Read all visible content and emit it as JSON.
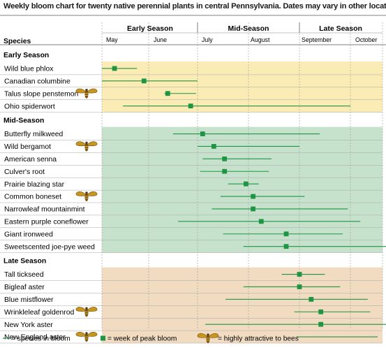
{
  "title": "Weekly bloom chart for twenty native perennial plants in central Pennsylvania. Dates may vary in other locations.",
  "colors": {
    "early_bg": "#faecb4",
    "mid_bg": "#c7e2cc",
    "late_bg": "#f1dcc2",
    "bloom_line": "#1f9443",
    "peak_marker": "#1f9443",
    "bee": "#c9961d"
  },
  "chart_data": {
    "type": "gantt",
    "species_header": "Species",
    "season_headers": [
      "Early Season",
      "Mid-Season",
      "Late Season"
    ],
    "months": [
      "May",
      "June",
      "July",
      "August",
      "September",
      "October"
    ],
    "x_unit": "months after May 1",
    "xlim": [
      0,
      6.1
    ],
    "groups": [
      {
        "name": "Early Season",
        "plants": [
          {
            "name": "Wild blue phlox",
            "bloom_start": 0.0,
            "bloom_end": 0.75,
            "peak": 0.27,
            "bee": false
          },
          {
            "name": "Canadian columbine",
            "bloom_start": 0.0,
            "bloom_end": 2.0,
            "peak": 0.9,
            "bee": false
          },
          {
            "name": "Talus slope penstemon",
            "bloom_start": 1.32,
            "bloom_end": 1.97,
            "peak": 1.39,
            "bee": true
          },
          {
            "name": "Ohio spiderwort",
            "bloom_start": 0.45,
            "bloom_end": 5.0,
            "peak": 1.86,
            "bee": false
          }
        ]
      },
      {
        "name": "Mid-Season",
        "plants": [
          {
            "name": "Butterfly milkweed",
            "bloom_start": 1.5,
            "bloom_end": 4.4,
            "peak": 2.1,
            "bee": false
          },
          {
            "name": "Wild bergamot",
            "bloom_start": 2.0,
            "bloom_end": 4.0,
            "peak": 2.32,
            "bee": true
          },
          {
            "name": "American senna",
            "bloom_start": 2.1,
            "bloom_end": 3.45,
            "peak": 2.53,
            "bee": false
          },
          {
            "name": "Culver's root",
            "bloom_start": 2.05,
            "bloom_end": 3.4,
            "peak": 2.53,
            "bee": false
          },
          {
            "name": "Prairie blazing star",
            "bloom_start": 2.6,
            "bloom_end": 3.2,
            "peak": 2.95,
            "bee": false
          },
          {
            "name": "Common boneset",
            "bloom_start": 2.45,
            "bloom_end": 4.1,
            "peak": 3.09,
            "bee": true
          },
          {
            "name": "Narrowleaf mountainmint",
            "bloom_start": 2.28,
            "bloom_end": 4.95,
            "peak": 3.09,
            "bee": false
          },
          {
            "name": "Eastern purple coneflower",
            "bloom_start": 1.6,
            "bloom_end": 5.2,
            "peak": 3.25,
            "bee": false
          },
          {
            "name": "Giant ironweed",
            "bloom_start": 2.5,
            "bloom_end": 4.85,
            "peak": 3.74,
            "bee": false
          },
          {
            "name": "Sweetscented joe-pye weed",
            "bloom_start": 2.9,
            "bloom_end": 5.75,
            "peak": 3.74,
            "bee": false
          }
        ]
      },
      {
        "name": "Late Season",
        "plants": [
          {
            "name": "Tall tickseed",
            "bloom_start": 3.65,
            "bloom_end": 4.5,
            "peak": 4.0,
            "bee": false
          },
          {
            "name": "Bigleaf aster",
            "bloom_start": 2.9,
            "bloom_end": 4.8,
            "peak": 4.0,
            "bee": false
          },
          {
            "name": "Blue mistflower",
            "bloom_start": 2.55,
            "bloom_end": 5.35,
            "peak": 4.23,
            "bee": false
          },
          {
            "name": "Wrinkleleaf goldenrod",
            "bloom_start": 3.9,
            "bloom_end": 5.4,
            "peak": 4.42,
            "bee": true
          },
          {
            "name": "New York aster",
            "bloom_start": 2.15,
            "bloom_end": 5.9,
            "peak": 4.42,
            "bee": false
          },
          {
            "name": "New England aster",
            "bloom_start": 3.95,
            "bloom_end": 5.55,
            "peak": null,
            "bee": true
          }
        ]
      }
    ]
  },
  "legend": {
    "in_bloom": "= species in bloom",
    "peak": "= week of peak bloom",
    "bees": "= highly attractive to bees"
  }
}
